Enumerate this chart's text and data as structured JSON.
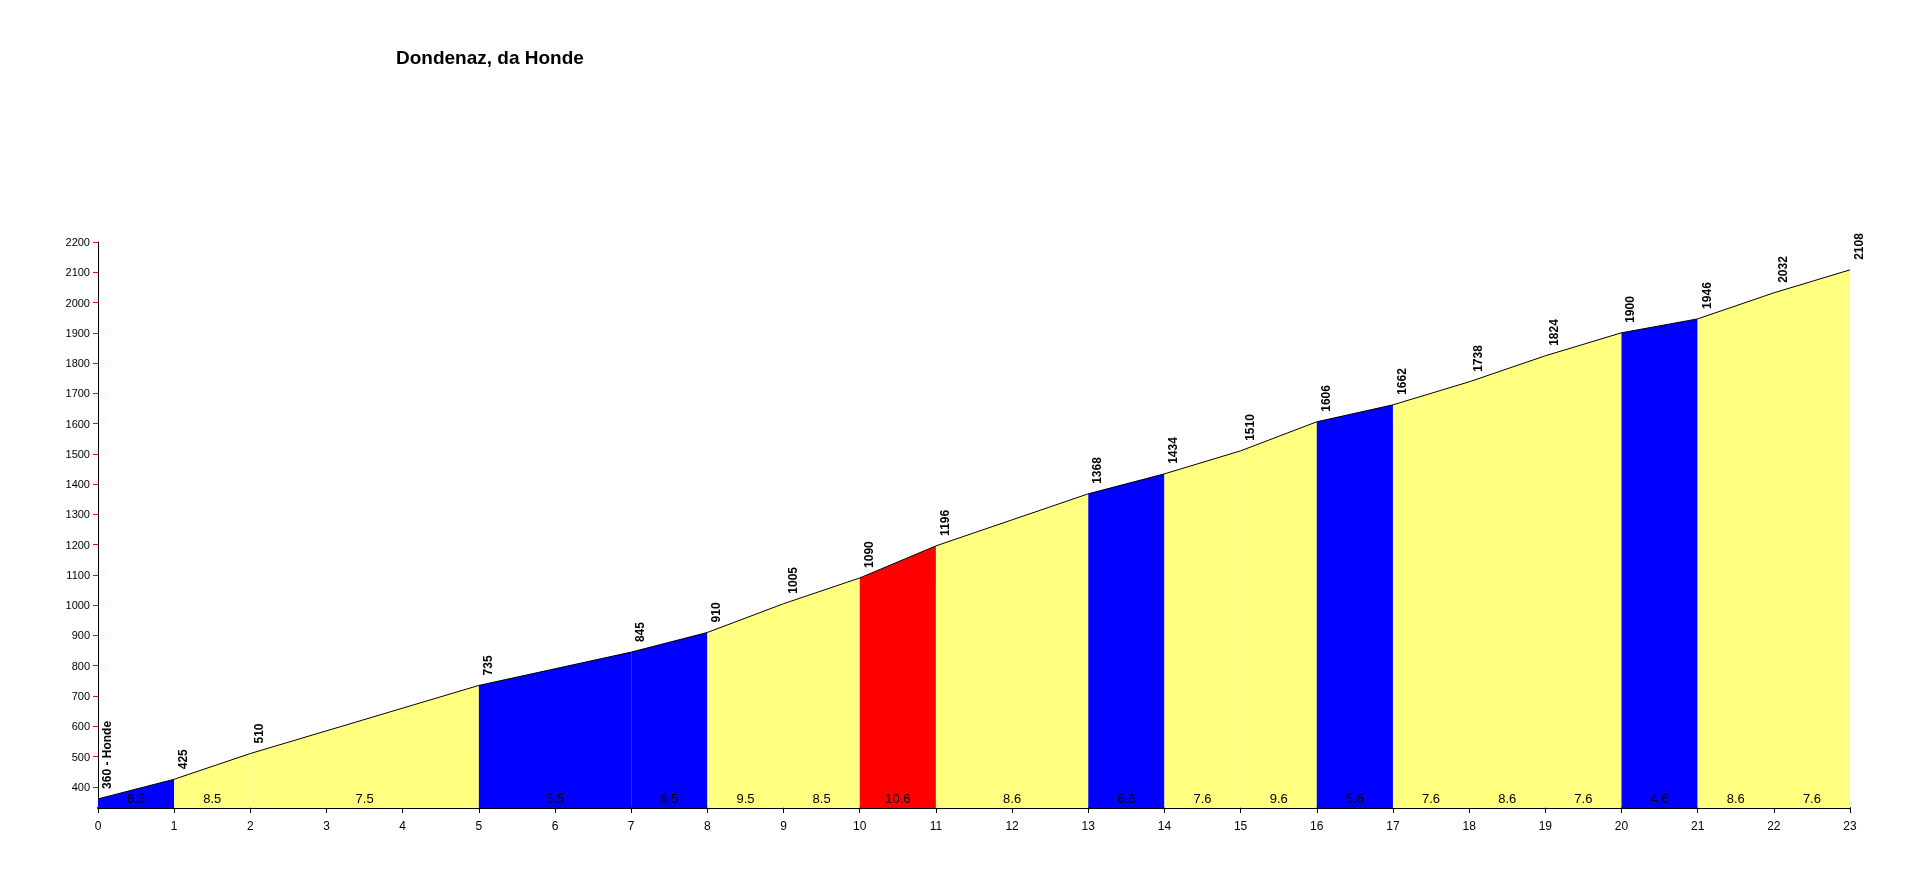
{
  "chart_data": {
    "type": "area",
    "title": "Dondenaz, da Honde",
    "xlim": [
      0,
      23
    ],
    "xticks": [
      0,
      1,
      2,
      3,
      4,
      5,
      6,
      7,
      8,
      9,
      10,
      11,
      12,
      13,
      14,
      15,
      16,
      17,
      18,
      19,
      20,
      21,
      22,
      23
    ],
    "ylim": [
      330,
      2200
    ],
    "yticks": [
      400,
      500,
      600,
      700,
      800,
      900,
      1000,
      1100,
      1200,
      1300,
      1400,
      1500,
      1600,
      1700,
      1800,
      1900,
      2000,
      2100,
      2200
    ],
    "grid": false,
    "marker": "none",
    "series": [
      {
        "type": "line",
        "color": "#000000",
        "x": [
          0,
          1,
          2,
          5,
          7,
          8,
          9,
          10,
          11,
          13,
          14,
          15,
          16,
          17,
          18,
          19,
          20,
          21,
          22,
          23
        ],
        "values": [
          360,
          425,
          510,
          735,
          845,
          910,
          1005,
          1090,
          1196,
          1368,
          1434,
          1510,
          1606,
          1662,
          1738,
          1824,
          1900,
          1946,
          2032,
          2108
        ],
        "value_labels": [
          "360 - Honde",
          "425",
          "510",
          "735",
          "845",
          "910",
          "1005",
          "1090",
          "1196",
          "1368",
          "1434",
          "1510",
          "1606",
          "1662",
          "1738",
          "1824",
          "1900",
          "1946",
          "2032",
          "2108"
        ]
      },
      {
        "color": "#0000ff",
        "x": [
          0,
          1
        ],
        "values": [
          360,
          425
        ]
      },
      {
        "color": "#ffff80",
        "x": [
          1,
          2
        ],
        "values": [
          425,
          510
        ]
      },
      {
        "color": "#ffff80",
        "x": [
          2,
          5
        ],
        "values": [
          510,
          735
        ]
      },
      {
        "color": "#0000ff",
        "x": [
          5,
          7
        ],
        "values": [
          735,
          845
        ]
      },
      {
        "color": "#0000ff",
        "x": [
          7,
          8
        ],
        "values": [
          845,
          910
        ]
      },
      {
        "color": "#ffff80",
        "x": [
          8,
          9
        ],
        "values": [
          910,
          1005
        ]
      },
      {
        "color": "#ffff80",
        "x": [
          9,
          10
        ],
        "values": [
          1005,
          1090
        ]
      },
      {
        "color": "#ff0000",
        "x": [
          10,
          11
        ],
        "values": [
          1090,
          1196
        ]
      },
      {
        "color": "#ffff80",
        "x": [
          11,
          13
        ],
        "values": [
          1196,
          1368
        ]
      },
      {
        "color": "#0000ff",
        "x": [
          13,
          14
        ],
        "values": [
          1368,
          1434
        ]
      },
      {
        "color": "#ffff80",
        "x": [
          14,
          15
        ],
        "values": [
          1434,
          1510
        ]
      },
      {
        "color": "#ffff80",
        "x": [
          15,
          16
        ],
        "values": [
          1510,
          1606
        ]
      },
      {
        "color": "#0000ff",
        "x": [
          16,
          17
        ],
        "values": [
          1606,
          1662
        ]
      },
      {
        "color": "#ffff80",
        "x": [
          17,
          18
        ],
        "values": [
          1662,
          1738
        ]
      },
      {
        "color": "#ffff80",
        "x": [
          18,
          19
        ],
        "values": [
          1738,
          1824
        ]
      },
      {
        "color": "#ffff80",
        "x": [
          19,
          20
        ],
        "values": [
          1824,
          1900
        ]
      },
      {
        "color": "#0000ff",
        "x": [
          20,
          21
        ],
        "values": [
          1900,
          1946
        ]
      },
      {
        "color": "#ffff80",
        "x": [
          21,
          22
        ],
        "values": [
          1946,
          2032
        ]
      },
      {
        "color": "#ffff80",
        "x": [
          22,
          23
        ],
        "values": [
          2032,
          2108
        ]
      }
    ],
    "annotations": [
      "6.5",
      "8.5",
      "7.5",
      "5.5",
      "6.5",
      "9.5",
      "8.5",
      "10.6",
      "8.6",
      "6.6",
      "7.6",
      "9.6",
      "5.6",
      "7.6",
      "8.6",
      "7.6",
      "4.6",
      "8.6",
      "7.6"
    ]
  }
}
